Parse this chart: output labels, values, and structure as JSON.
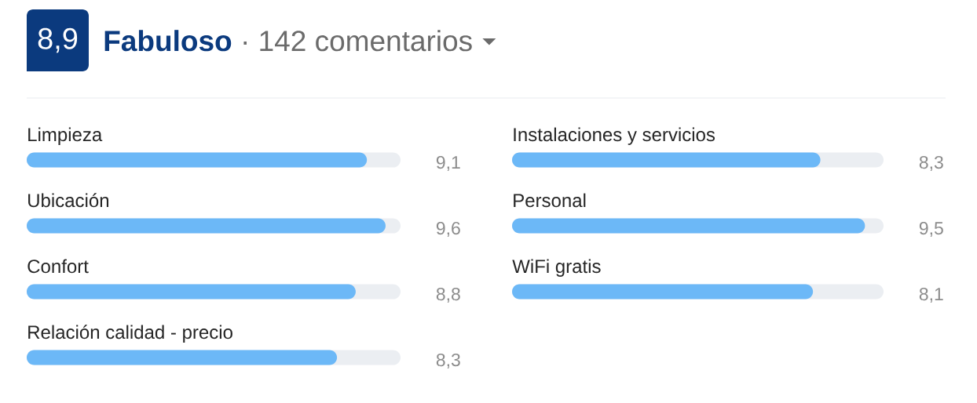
{
  "chart_data": [
    {
      "type": "bar",
      "orientation": "horizontal",
      "title": "Fabuloso",
      "subtitle": "· 142 comentarios",
      "annotations": [
        "8,9"
      ],
      "categories": [
        "Limpieza",
        "Ubicación",
        "Confort",
        "Relación calidad - precio"
      ],
      "values": [
        9.1,
        9.6,
        8.8,
        8.3
      ],
      "value_labels": [
        "9,1",
        "9,6",
        "8,8",
        "8,3"
      ],
      "color": "#6cb8f7",
      "xlim": [
        0,
        10
      ],
      "tick_labels": "y"
    },
    {
      "type": "bar",
      "orientation": "horizontal",
      "categories": [
        "Instalaciones y servicios",
        "Personal",
        "WiFi gratis"
      ],
      "values": [
        8.3,
        9.5,
        8.1
      ],
      "value_labels": [
        "8,3",
        "9,5",
        "8,1"
      ],
      "color": "#6cb8f7",
      "xlim": [
        0,
        10
      ],
      "tick_labels": "y"
    }
  ]
}
